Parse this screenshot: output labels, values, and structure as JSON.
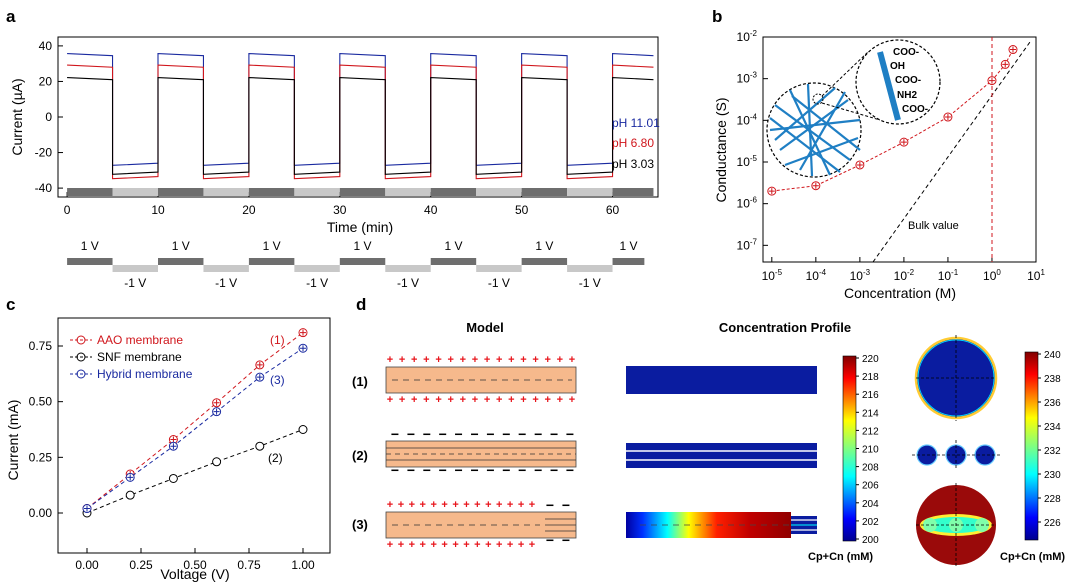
{
  "panels": {
    "a": {
      "label": "a",
      "y_label": "Current (µA)",
      "x_label": "Time (min)",
      "y_ticks": [
        "40",
        "20",
        "0",
        "-20",
        "-40"
      ],
      "x_ticks": [
        "0",
        "10",
        "20",
        "30",
        "40",
        "50",
        "60"
      ],
      "legend": [
        {
          "text": "pH 11.01",
          "color": "#1a2aa0"
        },
        {
          "text": "pH 6.80",
          "color": "#d0161c"
        },
        {
          "text": "pH 3.03",
          "color": "#000000"
        }
      ],
      "voltage_labels": [
        "1 V",
        "-1 V"
      ]
    },
    "b": {
      "label": "b",
      "y_label": "Conductance (S)",
      "x_label": "Concentration (M)",
      "bulk_label": "Bulk value",
      "y_ticks": [
        "10-2",
        "10-3",
        "10-4",
        "10-5",
        "10-6",
        "10-7"
      ],
      "x_ticks": [
        "10-5",
        "10-4",
        "10-3",
        "10-2",
        "10-1",
        "100",
        "101"
      ],
      "groups": [
        "COO-",
        "OH",
        "COO-",
        "NH2",
        "COO-"
      ]
    },
    "c": {
      "label": "c",
      "y_label": "Current (mA)",
      "x_label": "Voltage (V)",
      "y_ticks": [
        "0.75",
        "0.50",
        "0.25",
        "0.00"
      ],
      "x_ticks": [
        "0.00",
        "0.25",
        "0.50",
        "0.75",
        "1.00"
      ],
      "legend": [
        {
          "text": "AAO membrane",
          "color": "#d0161c"
        },
        {
          "text": "SNF membrane",
          "color": "#000000"
        },
        {
          "text": "Hybrid membrane",
          "color": "#1a2aa0"
        }
      ],
      "annotations": [
        "(1)",
        "(3)",
        "(2)"
      ]
    },
    "d": {
      "label": "d",
      "model_title": "Model",
      "profile_title": "Concentration Profile",
      "row_labels": [
        "(1)",
        "(2)",
        "(3)"
      ],
      "colorbar1": {
        "ticks": [
          "220",
          "218",
          "216",
          "214",
          "212",
          "210",
          "208",
          "206",
          "204",
          "202",
          "200"
        ],
        "label": "Cp+Cn (mM)"
      },
      "colorbar2": {
        "ticks": [
          "240",
          "238",
          "236",
          "234",
          "232",
          "230",
          "228",
          "226"
        ],
        "label": "Cp+Cn (mM)"
      }
    }
  },
  "chart_data": [
    {
      "type": "line",
      "title": "",
      "xlabel": "Time (min)",
      "ylabel": "Current (µA)",
      "xlim": [
        -1,
        65
      ],
      "ylim": [
        -45,
        45
      ],
      "series": [
        {
          "name": "pH 11.01",
          "high": 34.5,
          "low": -26
        },
        {
          "name": "pH 6.80",
          "high": 28,
          "low": -33.5
        },
        {
          "name": "pH 3.03",
          "high": 21,
          "low": -31
        }
      ],
      "period_min": 10
    },
    {
      "type": "scatter",
      "xlabel": "Concentration (M)",
      "ylabel": "Conductance (S)",
      "xscale": "log",
      "yscale": "log",
      "x": [
        1e-05,
        0.0001,
        0.001,
        0.01,
        0.1,
        1,
        2,
        3
      ],
      "y": [
        2e-06,
        2.7e-06,
        8.5e-06,
        3e-05,
        0.00012,
        0.0009,
        0.0022,
        0.005
      ]
    },
    {
      "type": "line",
      "xlabel": "Voltage (V)",
      "ylabel": "Current (mA)",
      "x": [
        0,
        0.2,
        0.4,
        0.6,
        0.8,
        1.0
      ],
      "series": [
        {
          "name": "AAO membrane",
          "values": [
            0.02,
            0.175,
            0.33,
            0.495,
            0.665,
            0.81
          ]
        },
        {
          "name": "SNF membrane",
          "values": [
            0,
            0.08,
            0.155,
            0.23,
            0.3,
            0.375
          ]
        },
        {
          "name": "Hybrid membrane",
          "values": [
            0.02,
            0.16,
            0.3,
            0.455,
            0.61,
            0.74
          ]
        }
      ]
    }
  ]
}
